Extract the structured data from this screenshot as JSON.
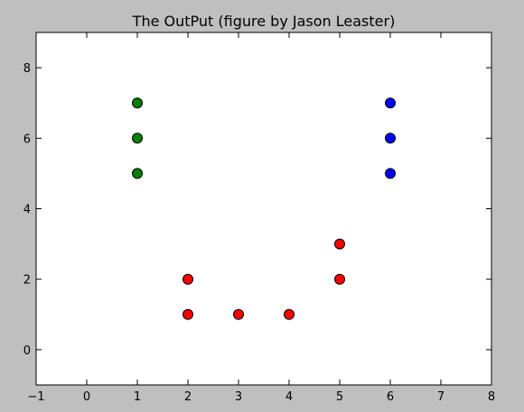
{
  "chart_data": {
    "type": "scatter",
    "title": "The OutPut (figure by Jason Leaster)",
    "xlabel": "",
    "ylabel": "",
    "xlim": [
      -1,
      8
    ],
    "ylim": [
      -1,
      9
    ],
    "xticks": [
      -1,
      0,
      1,
      2,
      3,
      4,
      5,
      6,
      7,
      8
    ],
    "yticks": [
      0,
      2,
      4,
      6,
      8
    ],
    "grid": false,
    "series": [
      {
        "color": "#008000",
        "points": [
          [
            1,
            7
          ],
          [
            1,
            6
          ],
          [
            1,
            5
          ]
        ]
      },
      {
        "color": "#0000ff",
        "points": [
          [
            6,
            7
          ],
          [
            6,
            6
          ],
          [
            6,
            5
          ]
        ]
      },
      {
        "color": "#ff0000",
        "points": [
          [
            2,
            2
          ],
          [
            2,
            1
          ],
          [
            3,
            1
          ],
          [
            4,
            1
          ],
          [
            5,
            2
          ],
          [
            5,
            3
          ]
        ]
      }
    ]
  }
}
